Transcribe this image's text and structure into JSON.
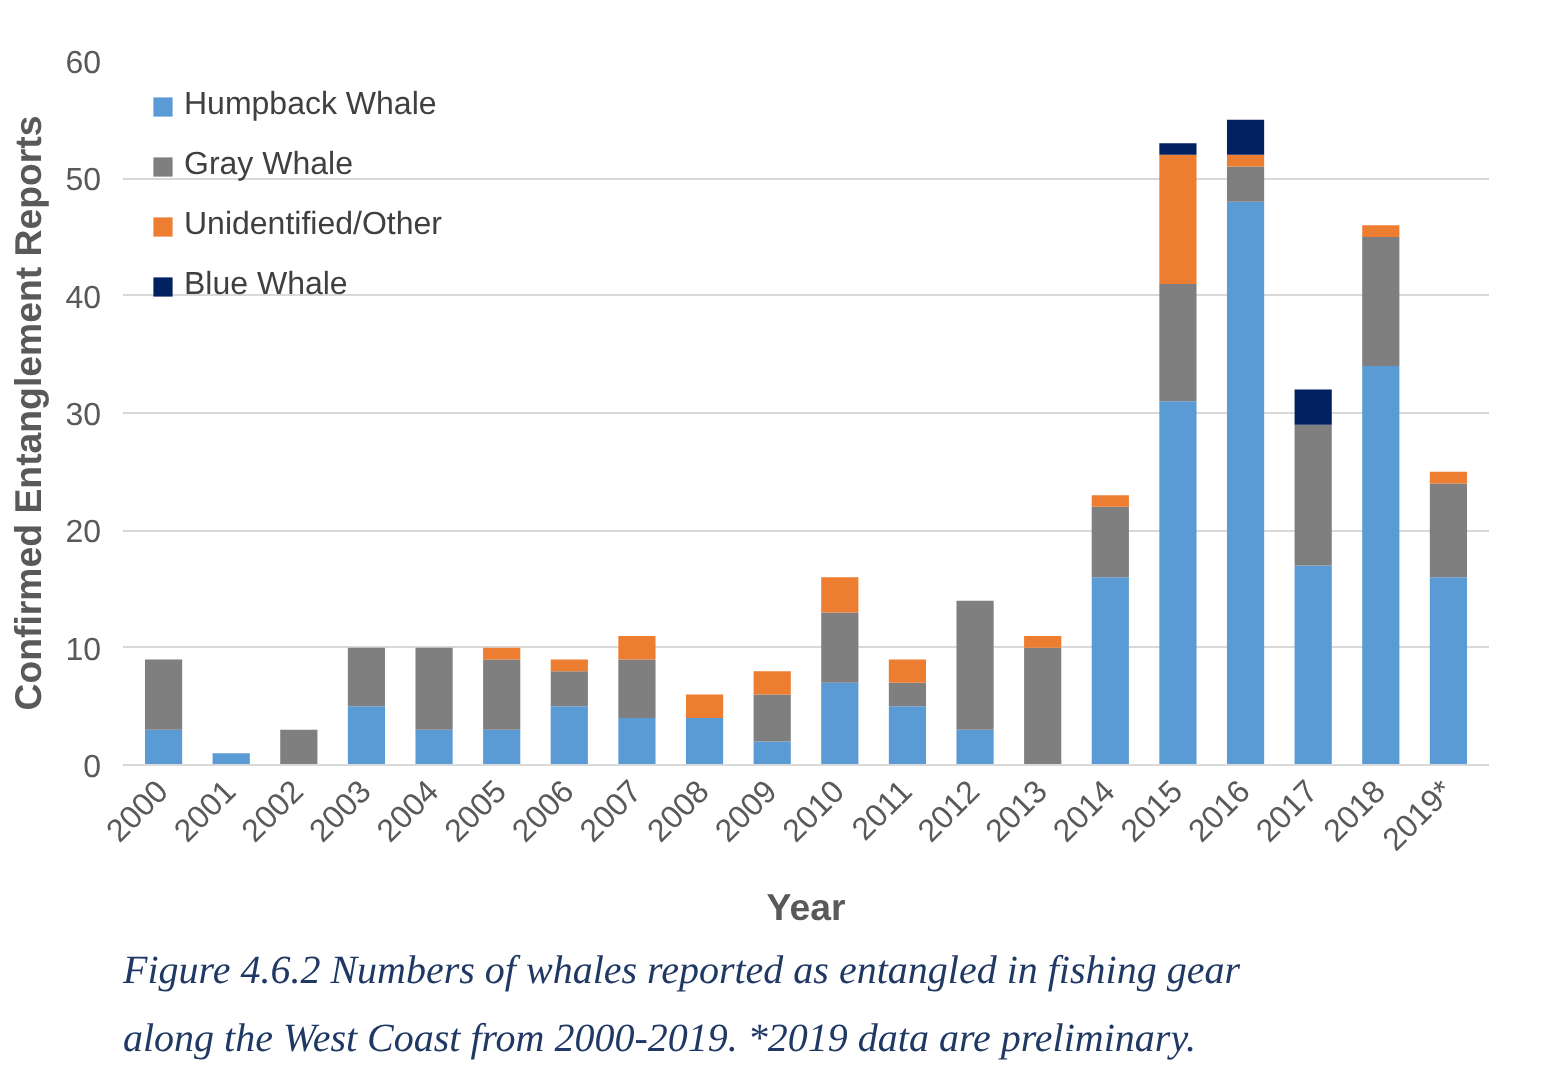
{
  "chart_data": {
    "type": "bar",
    "stacked": true,
    "xlabel": "Year",
    "ylabel": "Confirmed Entanglement Reports",
    "categories": [
      "2000",
      "2001",
      "2002",
      "2003",
      "2004",
      "2005",
      "2006",
      "2007",
      "2008",
      "2009",
      "2010",
      "2011",
      "2012",
      "2013",
      "2014",
      "2015",
      "2016",
      "2017",
      "2018",
      "2019*"
    ],
    "series": [
      {
        "name": "Humpback Whale",
        "color": "#5b9bd5",
        "values": [
          3,
          1,
          0,
          5,
          3,
          3,
          5,
          4,
          4,
          2,
          7,
          5,
          3,
          0,
          16,
          31,
          48,
          17,
          34,
          16
        ]
      },
      {
        "name": "Gray Whale",
        "color": "#7f7f7f",
        "values": [
          6,
          0,
          3,
          5,
          7,
          6,
          3,
          5,
          0,
          4,
          6,
          2,
          11,
          10,
          6,
          10,
          3,
          12,
          11,
          8
        ]
      },
      {
        "name": "Unidentified/Other",
        "color": "#ed7d31",
        "values": [
          0,
          0,
          0,
          0,
          0,
          1,
          1,
          2,
          2,
          2,
          3,
          2,
          0,
          1,
          1,
          11,
          1,
          0,
          1,
          1
        ]
      },
      {
        "name": "Blue Whale",
        "color": "#002060",
        "values": [
          0,
          0,
          0,
          0,
          0,
          0,
          0,
          0,
          0,
          0,
          0,
          0,
          0,
          0,
          0,
          1,
          3,
          3,
          0,
          0
        ]
      }
    ],
    "ylim": [
      0,
      60
    ],
    "yticks": [
      0,
      10,
      20,
      30,
      40,
      50,
      60
    ],
    "grid": "y",
    "legend": "top left",
    "annotations": [
      "Figure 4.6.2 Numbers of whales reported as entangled in fishing gear along the West Coast from 2000-2019. *2019 data are preliminary."
    ]
  }
}
